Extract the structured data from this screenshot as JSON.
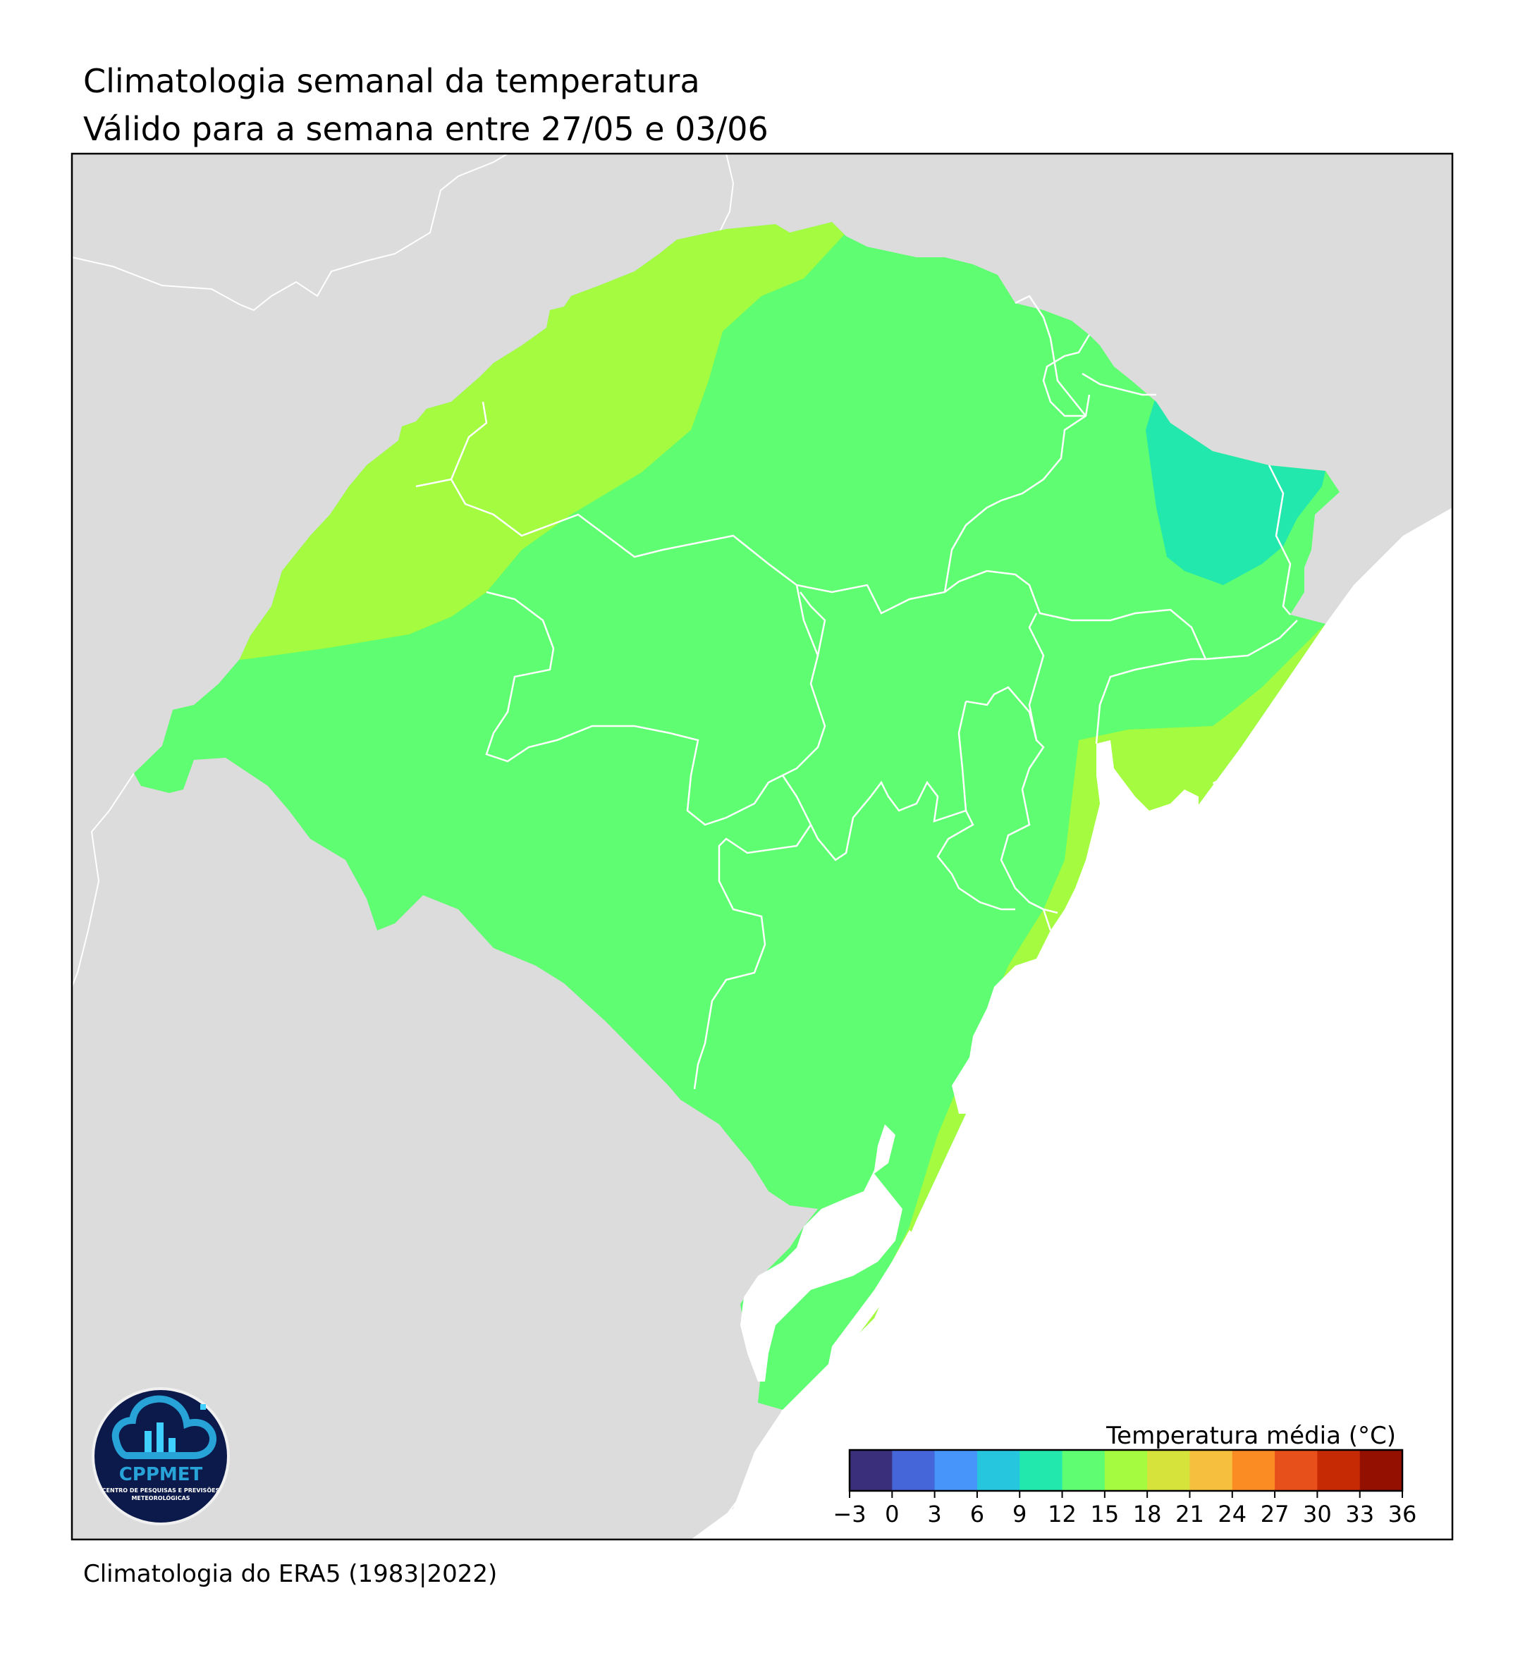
{
  "title": "Climatologia semanal da temperatura",
  "subtitle": "Válido para a semana entre 27/05 e 03/06",
  "footer": "Climatologia do ERA5 (1983|2022)",
  "colors": {
    "land_outside": "#dcdcdc",
    "ocean": "#ffffff",
    "temp_12_15": "#5ffd71",
    "temp_15_18": "#a4fb3f",
    "temp_9_12": "#22e8ae",
    "boundaries": "#ffffff"
  },
  "legend": {
    "title": "Temperatura média (°C)",
    "ticks": [
      "−3",
      "0",
      "3",
      "6",
      "9",
      "12",
      "15",
      "18",
      "21",
      "24",
      "27",
      "30",
      "33",
      "36"
    ],
    "colors": [
      "#3a2f7a",
      "#4466d8",
      "#4795fb",
      "#26c7de",
      "#22e8ae",
      "#5ffd71",
      "#a4fb3f",
      "#d6e33a",
      "#f6bf3e",
      "#fb8c24",
      "#e8501b",
      "#c62a05",
      "#941102"
    ]
  },
  "logo": {
    "name": "CPPMET",
    "subtext_line1": "CENTRO DE PESQUISAS E PREVISÕES",
    "subtext_line2": "METEOROLÓGICAS"
  }
}
